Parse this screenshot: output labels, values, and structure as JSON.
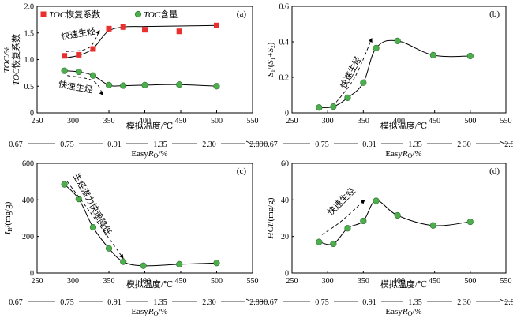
{
  "figure": {
    "x_axis_label_cn": "模拟温度/℃",
    "easy_label_prefix": "Easy",
    "easy_label_italic": "R",
    "easy_label_sub": "O",
    "easy_label_suffix": "/%",
    "easy_ticks": [
      "0.67",
      "0.75",
      "0.91",
      "1.35",
      "2.30",
      "2.89"
    ]
  },
  "chart_data": [
    {
      "id": "a",
      "type": "scatter",
      "panel_label": "(a)",
      "xlim": [
        250,
        550
      ],
      "ylim": [
        0,
        2.0
      ],
      "xticks": [
        250,
        300,
        350,
        400,
        450,
        500,
        550
      ],
      "yticks": [
        "0",
        "0.5",
        "1.0",
        "1.5",
        "2.0"
      ],
      "ylabel_line1_italic": "TOC",
      "ylabel_line1_rest": "/%",
      "ylabel_line2_italic": "TOC",
      "ylabel_line2_rest": "恢复系数",
      "legend": [
        {
          "italic": "TOC",
          "rest": "恢复系数",
          "marker": "square",
          "color": "#e8312f"
        },
        {
          "italic": "TOC",
          "rest": "含量",
          "marker": "circle",
          "color": "#4cae4c"
        }
      ],
      "series": [
        {
          "name": "TOC恢复系数",
          "marker": "square",
          "color": "#e8312f",
          "x": [
            288,
            308,
            328,
            350,
            370,
            400,
            448,
            500
          ],
          "y": [
            1.07,
            1.09,
            1.2,
            1.58,
            1.61,
            1.56,
            1.53,
            1.64
          ],
          "curve_x": [
            288,
            308,
            328,
            348,
            370,
            400,
            448,
            500
          ],
          "curve_y": [
            1.03,
            1.08,
            1.21,
            1.52,
            1.61,
            1.62,
            1.63,
            1.64
          ]
        },
        {
          "name": "TOC含量",
          "marker": "circle",
          "color": "#4cae4c",
          "x": [
            288,
            308,
            328,
            350,
            370,
            400,
            448,
            500
          ],
          "y": [
            0.79,
            0.77,
            0.7,
            0.52,
            0.51,
            0.52,
            0.53,
            0.5
          ],
          "curve_x": [
            288,
            308,
            328,
            350,
            370,
            400,
            448,
            500
          ],
          "curve_y": [
            0.79,
            0.77,
            0.7,
            0.52,
            0.51,
            0.52,
            0.53,
            0.5
          ]
        }
      ],
      "annotations": [
        {
          "text": "快速生烃",
          "x": 308,
          "y": 1.43,
          "rotate": -10
        },
        {
          "text": "快速生烃",
          "x": 303,
          "y": 0.43,
          "rotate": 10
        }
      ]
    },
    {
      "id": "b",
      "type": "scatter",
      "panel_label": "(b)",
      "xlim": [
        250,
        550
      ],
      "ylim": [
        0,
        0.6
      ],
      "xticks": [
        250,
        300,
        350,
        400,
        450,
        500,
        550
      ],
      "yticks": [
        "0",
        "0.2",
        "0.4",
        "0.6"
      ],
      "ylabel_italic_a": "S",
      "ylabel_sub_a": "1",
      "ylabel_mid": "/(",
      "ylabel_italic_b": "S",
      "ylabel_sub_b": "1",
      "ylabel_plus": "+",
      "ylabel_italic_c": "S",
      "ylabel_sub_c": "2",
      "ylabel_end": ")",
      "series": [
        {
          "name": "",
          "marker": "circle",
          "color": "#4cae4c",
          "x": [
            288,
            308,
            328,
            350,
            368,
            398,
            448,
            500
          ],
          "y": [
            0.03,
            0.035,
            0.085,
            0.17,
            0.365,
            0.405,
            0.325,
            0.32
          ],
          "curve_x": [
            288,
            308,
            328,
            350,
            368,
            398,
            448,
            500
          ],
          "curve_y": [
            0.03,
            0.035,
            0.085,
            0.17,
            0.365,
            0.405,
            0.325,
            0.32
          ]
        }
      ],
      "annotations": [
        {
          "text": "快速生烃",
          "x": 336,
          "y": 0.22,
          "rotate": -62
        }
      ]
    },
    {
      "id": "c",
      "type": "scatter",
      "panel_label": "(c)",
      "xlim": [
        250,
        550
      ],
      "ylim": [
        0,
        600
      ],
      "xticks": [
        250,
        300,
        350,
        400,
        450,
        500,
        550
      ],
      "yticks": [
        "0",
        "200",
        "400",
        "600"
      ],
      "ylabel_italic": "I",
      "ylabel_sub": "H",
      "ylabel_rest": "/(mg/g)",
      "series": [
        {
          "name": "",
          "marker": "circle",
          "color": "#4cae4c",
          "x": [
            288,
            308,
            328,
            350,
            370,
            398,
            448,
            500
          ],
          "y": [
            485,
            405,
            250,
            135,
            62,
            40,
            48,
            55
          ],
          "curve_x": [
            288,
            308,
            328,
            350,
            370,
            398,
            448,
            500
          ],
          "curve_y": [
            485,
            405,
            250,
            135,
            62,
            40,
            48,
            55
          ]
        }
      ],
      "annotations": [
        {
          "text": "生烃潜力快速降低",
          "x": 323,
          "y": 370,
          "rotate": 61
        }
      ]
    },
    {
      "id": "d",
      "type": "scatter",
      "panel_label": "(d)",
      "xlim": [
        250,
        550
      ],
      "ylim": [
        0,
        60
      ],
      "xticks": [
        250,
        300,
        350,
        400,
        450,
        500,
        550
      ],
      "yticks": [
        "0",
        "20",
        "40",
        "60"
      ],
      "ylabel_italic": "HCI",
      "ylabel_rest": "/(mg/g)",
      "series": [
        {
          "name": "",
          "marker": "circle",
          "color": "#4cae4c",
          "x": [
            288,
            308,
            328,
            350,
            368,
            398,
            448,
            500
          ],
          "y": [
            17,
            16,
            24.5,
            28.5,
            39.5,
            31.5,
            26,
            28
          ],
          "curve_x": [
            288,
            308,
            328,
            350,
            368,
            398,
            448,
            500
          ],
          "curve_y": [
            17,
            16,
            24.5,
            28.5,
            39.5,
            31.5,
            26,
            28
          ]
        }
      ],
      "annotations": [
        {
          "text": "快速生烃",
          "x": 322,
          "y": 38,
          "rotate": -45
        }
      ]
    }
  ]
}
